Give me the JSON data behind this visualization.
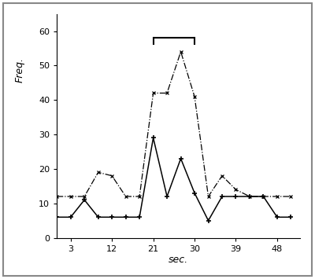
{
  "line1_x": [
    0,
    3,
    6,
    9,
    12,
    15,
    18,
    21,
    24,
    27,
    30,
    33,
    36,
    39,
    42,
    45,
    48,
    51
  ],
  "line1_y": [
    12,
    12,
    12,
    19,
    18,
    12,
    12,
    42,
    42,
    54,
    41,
    12,
    18,
    14,
    12,
    12,
    12,
    12
  ],
  "line2_x": [
    0,
    3,
    6,
    9,
    12,
    15,
    18,
    21,
    24,
    27,
    30,
    33,
    36,
    39,
    42,
    45,
    48,
    51
  ],
  "line2_y": [
    6,
    6,
    11,
    6,
    6,
    6,
    6,
    29,
    12,
    23,
    13,
    5,
    12,
    12,
    12,
    12,
    6,
    6
  ],
  "line1_style": "-.",
  "line2_style": "-",
  "line1_marker": "x",
  "line2_marker": "+",
  "line_color": "#000000",
  "xlabel": "sec.",
  "ylabel": "Freq.",
  "xticks": [
    3,
    12,
    21,
    30,
    39,
    48
  ],
  "yticks": [
    0,
    10,
    20,
    30,
    40,
    50,
    60
  ],
  "xlim": [
    0,
    53
  ],
  "ylim": [
    0,
    65
  ],
  "bracket_x1": 21,
  "bracket_x2": 30,
  "bracket_y": 58,
  "background_color": "#ffffff",
  "outer_box_color": "#888888"
}
